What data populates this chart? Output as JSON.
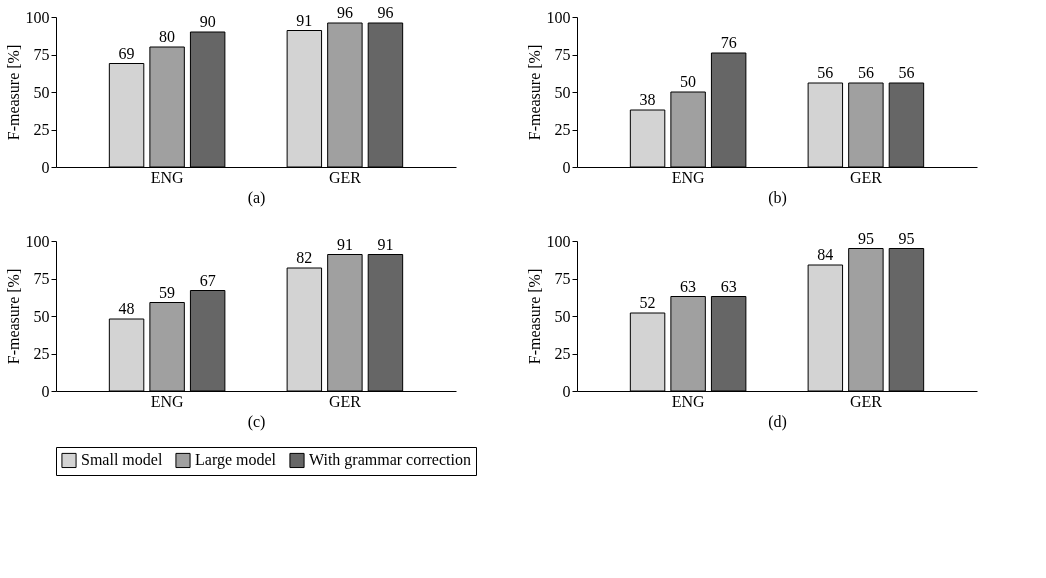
{
  "chart_data": [
    {
      "type": "bar",
      "xlabel": "(a)",
      "ylabel": "F-measure [%]",
      "categories": [
        "ENG",
        "GER"
      ],
      "ylim": [
        0,
        100
      ],
      "yticks": [
        0,
        25,
        50,
        75,
        100
      ],
      "data_labels": true,
      "grid": false,
      "legend": "bottom",
      "series": [
        {
          "name": "Small model",
          "color": "#d3d3d3",
          "values": [
            69,
            91
          ]
        },
        {
          "name": "Large model",
          "color": "#a0a0a0",
          "values": [
            80,
            96
          ]
        },
        {
          "name": "With grammar correction",
          "color": "#666666",
          "values": [
            90,
            96
          ]
        }
      ]
    },
    {
      "type": "bar",
      "xlabel": "(b)",
      "ylabel": "F-measure [%]",
      "categories": [
        "ENG",
        "GER"
      ],
      "ylim": [
        0,
        100
      ],
      "yticks": [
        0,
        25,
        50,
        75,
        100
      ],
      "data_labels": true,
      "grid": false,
      "legend": "bottom",
      "series": [
        {
          "name": "Small model",
          "color": "#d3d3d3",
          "values": [
            38,
            56
          ]
        },
        {
          "name": "Large model",
          "color": "#a0a0a0",
          "values": [
            50,
            56
          ]
        },
        {
          "name": "With grammar correction",
          "color": "#666666",
          "values": [
            76,
            56
          ]
        }
      ]
    },
    {
      "type": "bar",
      "xlabel": "(c)",
      "ylabel": "F-measure [%]",
      "categories": [
        "ENG",
        "GER"
      ],
      "ylim": [
        0,
        100
      ],
      "yticks": [
        0,
        25,
        50,
        75,
        100
      ],
      "data_labels": true,
      "grid": false,
      "legend": "bottom",
      "series": [
        {
          "name": "Small model",
          "color": "#d3d3d3",
          "values": [
            48,
            82
          ]
        },
        {
          "name": "Large model",
          "color": "#a0a0a0",
          "values": [
            59,
            91
          ]
        },
        {
          "name": "With grammar correction",
          "color": "#666666",
          "values": [
            67,
            91
          ]
        }
      ]
    },
    {
      "type": "bar",
      "xlabel": "(d)",
      "ylabel": "F-measure [%]",
      "categories": [
        "ENG",
        "GER"
      ],
      "ylim": [
        0,
        100
      ],
      "yticks": [
        0,
        25,
        50,
        75,
        100
      ],
      "data_labels": true,
      "grid": false,
      "legend": "bottom",
      "series": [
        {
          "name": "Small model",
          "color": "#d3d3d3",
          "values": [
            52,
            84
          ]
        },
        {
          "name": "Large model",
          "color": "#a0a0a0",
          "values": [
            63,
            95
          ]
        },
        {
          "name": "With grammar correction",
          "color": "#666666",
          "values": [
            63,
            95
          ]
        }
      ]
    }
  ]
}
